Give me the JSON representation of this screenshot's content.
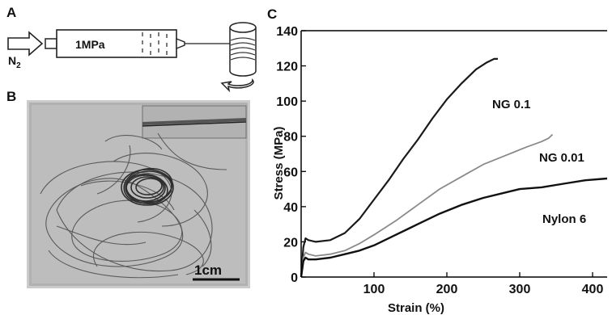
{
  "panels": {
    "a": "A",
    "b": "B",
    "c": "C"
  },
  "schematic": {
    "gas_label": "N",
    "gas_subscript": "2",
    "pressure_label": "1MPa"
  },
  "photo": {
    "scale_bar_label": "1cm"
  },
  "colors": {
    "nylon6": "#111111",
    "ng001": "#8a8a8a",
    "ng01": "#1a1a1a",
    "photo_bg": "#bfbfbf",
    "axis": "#000000"
  },
  "chart_data": {
    "type": "line",
    "title": "",
    "xlabel": "Strain (%)",
    "ylabel": "Stress (MPa)",
    "xlim": [
      0,
      420
    ],
    "ylim": [
      0,
      140
    ],
    "x_ticks": [
      100,
      200,
      300,
      400
    ],
    "y_ticks": [
      0,
      20,
      40,
      60,
      80,
      100,
      120,
      140
    ],
    "grid": false,
    "series": [
      {
        "name": "NG 0.1",
        "x": [
          0,
          3,
          6,
          10,
          20,
          40,
          60,
          80,
          100,
          120,
          140,
          160,
          180,
          200,
          220,
          240,
          255,
          265,
          270
        ],
        "y": [
          0,
          17,
          22,
          21,
          20,
          21,
          25,
          33,
          44,
          55,
          67,
          78,
          90,
          101,
          110,
          118,
          122,
          124,
          124
        ]
      },
      {
        "name": "NG 0.01",
        "x": [
          0,
          3,
          6,
          10,
          20,
          40,
          60,
          80,
          100,
          130,
          160,
          190,
          220,
          250,
          280,
          310,
          330,
          340,
          345
        ],
        "y": [
          0,
          11,
          14,
          13,
          12,
          13,
          15,
          19,
          24,
          32,
          41,
          50,
          57,
          64,
          69,
          74,
          77,
          79,
          81
        ]
      },
      {
        "name": "Nylon 6",
        "x": [
          0,
          3,
          6,
          10,
          20,
          40,
          60,
          80,
          100,
          130,
          160,
          190,
          220,
          250,
          280,
          300,
          330,
          360,
          390,
          420
        ],
        "y": [
          0,
          9,
          11,
          10,
          10,
          11,
          13,
          15,
          18,
          24,
          30,
          36,
          41,
          45,
          48,
          50,
          51,
          53,
          55,
          56
        ]
      }
    ]
  }
}
